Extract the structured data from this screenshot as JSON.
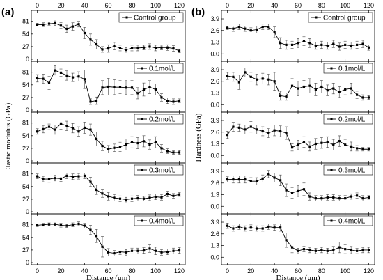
{
  "chart_data": [
    {
      "type": "line",
      "panel_label": "(a)",
      "xlabel": "Distance (μm)",
      "ylabel": "Elastic modulus (GPa)",
      "x_ticks": [
        "0",
        "20",
        "40",
        "60",
        "80",
        "100",
        "120"
      ],
      "xlim": [
        -5,
        125
      ],
      "ylim": [
        0,
        100
      ],
      "y_ticks": [
        "0",
        "27",
        "54",
        "81"
      ],
      "x": [
        0,
        5,
        10,
        15,
        20,
        25,
        30,
        35,
        40,
        45,
        50,
        55,
        60,
        65,
        70,
        75,
        80,
        85,
        90,
        95,
        100,
        105,
        110,
        115,
        120
      ],
      "series": [
        {
          "name": "Control group",
          "values": [
            74,
            74,
            76,
            77,
            72,
            65,
            70,
            75,
            56,
            42,
            32,
            21,
            23,
            28,
            24,
            20,
            24,
            24,
            25,
            27,
            24,
            25,
            25,
            23,
            18
          ],
          "errors": [
            3,
            4,
            4,
            5,
            6,
            8,
            8,
            6,
            12,
            12,
            10,
            6,
            8,
            8,
            6,
            5,
            6,
            6,
            5,
            6,
            6,
            5,
            6,
            6,
            4
          ]
        },
        {
          "name": "0.1mol/L",
          "values": [
            68,
            67,
            58,
            85,
            80,
            74,
            70,
            72,
            66,
            18,
            20,
            48,
            50,
            49,
            49,
            48,
            48,
            36,
            44,
            49,
            44,
            27,
            20,
            18,
            20
          ],
          "errors": [
            8,
            10,
            14,
            10,
            8,
            10,
            9,
            10,
            20,
            6,
            8,
            15,
            18,
            16,
            14,
            15,
            15,
            12,
            14,
            14,
            12,
            8,
            6,
            6,
            4
          ]
        },
        {
          "name": "0.2mol/L",
          "values": [
            63,
            68,
            73,
            67,
            80,
            75,
            70,
            63,
            71,
            67,
            47,
            32,
            25,
            28,
            30,
            35,
            40,
            38,
            42,
            35,
            40,
            27,
            21,
            18,
            18
          ],
          "errors": [
            6,
            8,
            6,
            10,
            12,
            10,
            10,
            10,
            12,
            12,
            15,
            10,
            8,
            8,
            10,
            12,
            12,
            12,
            12,
            10,
            12,
            8,
            5,
            4,
            4
          ]
        },
        {
          "name": "0.3mol/L",
          "values": [
            76,
            70,
            70,
            72,
            71,
            77,
            75,
            76,
            77,
            64,
            47,
            39,
            33,
            30,
            28,
            26,
            28,
            29,
            28,
            30,
            32,
            31,
            38,
            34,
            37
          ],
          "errors": [
            5,
            6,
            7,
            6,
            6,
            6,
            6,
            6,
            6,
            10,
            10,
            8,
            8,
            7,
            6,
            5,
            6,
            6,
            5,
            6,
            6,
            6,
            6,
            5,
            4
          ]
        },
        {
          "name": "0.4mol/L",
          "values": [
            80,
            81,
            82,
            82,
            80,
            79,
            81,
            83,
            79,
            70,
            57,
            34,
            22,
            20,
            23,
            22,
            25,
            25,
            26,
            30,
            25,
            22,
            23,
            25,
            26
          ],
          "errors": [
            3,
            3,
            3,
            3,
            4,
            4,
            4,
            4,
            5,
            10,
            14,
            22,
            8,
            6,
            6,
            6,
            6,
            6,
            6,
            8,
            8,
            6,
            6,
            6,
            6
          ]
        }
      ]
    },
    {
      "type": "line",
      "panel_label": "(b)",
      "xlabel": "Distance (μm)",
      "ylabel": "Hardness (GPa)",
      "x_ticks": [
        "0",
        "20",
        "40",
        "60",
        "80",
        "100",
        "120"
      ],
      "xlim": [
        -5,
        125
      ],
      "ylim": [
        -0.6,
        4.6
      ],
      "y_ticks": [
        "0.0",
        "1.3",
        "2.6",
        "3.9"
      ],
      "x": [
        0,
        5,
        10,
        15,
        20,
        25,
        30,
        35,
        40,
        45,
        50,
        55,
        60,
        65,
        70,
        75,
        80,
        85,
        90,
        95,
        100,
        105,
        110,
        115,
        120
      ],
      "series": [
        {
          "name": "Control group",
          "values": [
            2.9,
            2.8,
            3.0,
            2.8,
            2.6,
            2.7,
            3.0,
            3.0,
            2.4,
            1.2,
            1.0,
            1.0,
            1.2,
            1.4,
            1.2,
            0.9,
            1.0,
            0.9,
            1.1,
            0.8,
            1.0,
            0.9,
            1.0,
            1.1,
            0.7
          ],
          "errors": [
            0.2,
            0.3,
            0.3,
            0.3,
            0.3,
            0.4,
            0.3,
            0.3,
            0.6,
            0.6,
            0.5,
            0.4,
            0.5,
            0.5,
            0.5,
            0.4,
            0.4,
            0.4,
            0.4,
            0.4,
            0.4,
            0.4,
            0.4,
            0.4,
            0.3
          ]
        },
        {
          "name": "0.1mol/L",
          "values": [
            3.2,
            3.1,
            2.5,
            3.6,
            3.1,
            2.8,
            2.9,
            2.8,
            2.6,
            1.0,
            0.9,
            2.1,
            1.8,
            2.0,
            2.1,
            1.7,
            2.0,
            1.6,
            1.8,
            1.4,
            1.7,
            1.8,
            1.1,
            0.8,
            0.8
          ],
          "errors": [
            0.4,
            0.5,
            0.8,
            0.5,
            0.5,
            0.6,
            0.6,
            0.6,
            1.0,
            0.5,
            0.4,
            0.8,
            0.8,
            0.7,
            0.8,
            0.7,
            0.7,
            0.6,
            0.6,
            0.6,
            0.6,
            0.6,
            0.4,
            0.3,
            0.2
          ]
        },
        {
          "name": "0.2mol/L",
          "values": [
            2.3,
            3.2,
            3.1,
            2.9,
            3.2,
            2.9,
            2.7,
            2.5,
            2.8,
            2.7,
            2.5,
            0.9,
            1.2,
            1.5,
            1.0,
            1.3,
            1.4,
            1.5,
            1.2,
            1.6,
            1.2,
            1.0,
            0.8,
            0.7,
            0.7
          ],
          "errors": [
            0.4,
            0.5,
            0.4,
            0.5,
            0.6,
            0.5,
            0.5,
            0.5,
            0.6,
            0.6,
            0.7,
            0.4,
            0.5,
            0.6,
            0.5,
            0.6,
            0.6,
            0.6,
            0.6,
            0.6,
            0.6,
            0.5,
            0.3,
            0.2,
            0.2
          ]
        },
        {
          "name": "0.3mol/L",
          "values": [
            3.0,
            3.0,
            3.0,
            3.0,
            2.8,
            2.8,
            3.1,
            3.6,
            3.2,
            2.9,
            1.8,
            1.5,
            1.7,
            1.9,
            1.1,
            0.9,
            0.9,
            1.0,
            1.0,
            0.9,
            0.9,
            1.1,
            1.2,
            0.9,
            1.0
          ],
          "errors": [
            0.3,
            0.4,
            0.4,
            0.4,
            0.4,
            0.4,
            0.4,
            0.4,
            0.5,
            0.6,
            0.7,
            0.6,
            0.6,
            0.7,
            0.4,
            0.3,
            0.3,
            0.3,
            0.3,
            0.3,
            0.3,
            0.3,
            0.3,
            0.3,
            0.2
          ]
        },
        {
          "name": "0.4mol/L",
          "values": [
            3.5,
            3.2,
            3.4,
            3.2,
            3.3,
            3.2,
            3.2,
            3.4,
            3.3,
            3.3,
            1.9,
            1.1,
            0.7,
            0.9,
            0.8,
            0.7,
            0.8,
            0.7,
            0.8,
            1.1,
            0.9,
            0.8,
            0.7,
            0.8,
            0.8
          ],
          "errors": [
            0.3,
            0.3,
            0.3,
            0.3,
            0.3,
            0.3,
            0.3,
            0.3,
            0.3,
            0.4,
            0.8,
            0.6,
            0.3,
            0.3,
            0.3,
            0.3,
            0.3,
            0.3,
            0.4,
            0.6,
            0.5,
            0.4,
            0.3,
            0.3,
            0.3
          ]
        }
      ]
    }
  ]
}
